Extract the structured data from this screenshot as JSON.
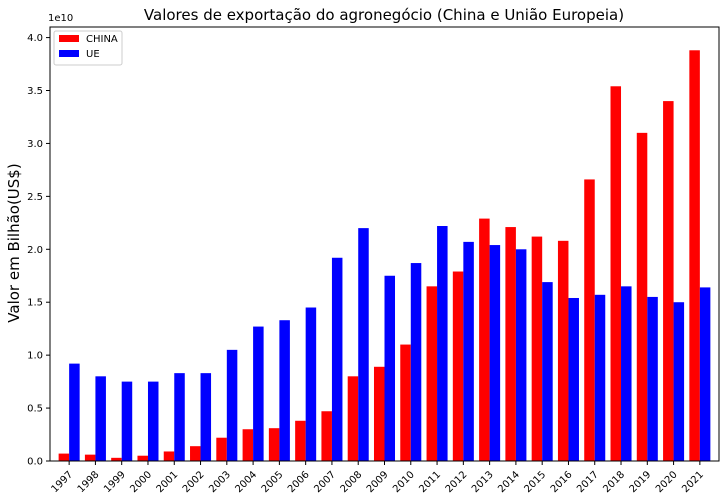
{
  "chart_data": {
    "type": "bar",
    "title": "Valores de exportação do agronegócio (China e União Europeia)",
    "xlabel": "",
    "ylabel": "Valor em Bilhão(US$)",
    "offset_label": "1e10",
    "ylim": [
      0,
      4.1
    ],
    "yticks": [
      "0.0",
      "0.5",
      "1.0",
      "1.5",
      "2.0",
      "2.5",
      "3.0",
      "3.5",
      "4.0"
    ],
    "categories": [
      "1997",
      "1998",
      "1999",
      "2000",
      "2001",
      "2002",
      "2003",
      "2004",
      "2005",
      "2006",
      "2007",
      "2008",
      "2009",
      "2010",
      "2011",
      "2012",
      "2013",
      "2014",
      "2015",
      "2016",
      "2017",
      "2018",
      "2019",
      "2020",
      "2021"
    ],
    "series": [
      {
        "name": "CHINA",
        "color": "#ff0000",
        "values": [
          0.07,
          0.06,
          0.03,
          0.05,
          0.09,
          0.14,
          0.22,
          0.3,
          0.31,
          0.38,
          0.47,
          0.8,
          0.89,
          1.1,
          1.65,
          1.79,
          2.29,
          2.21,
          2.12,
          2.08,
          2.66,
          3.54,
          3.1,
          3.4,
          3.88
        ]
      },
      {
        "name": "UE",
        "color": "#0000ff",
        "values": [
          0.92,
          0.8,
          0.75,
          0.75,
          0.83,
          0.83,
          1.05,
          1.27,
          1.33,
          1.45,
          1.92,
          2.2,
          1.75,
          1.87,
          2.22,
          2.07,
          2.04,
          2.0,
          1.69,
          1.54,
          1.57,
          1.65,
          1.55,
          1.5,
          1.64
        ]
      }
    ],
    "legend": {
      "placement": "top-left"
    },
    "grid": false
  }
}
